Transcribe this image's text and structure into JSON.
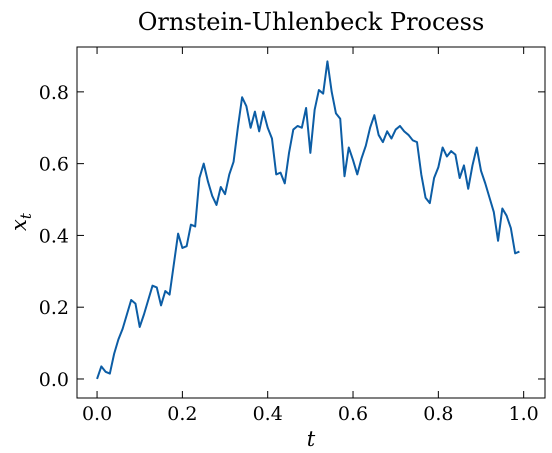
{
  "chart_data": {
    "type": "line",
    "title": "Ornstein-Uhlenbeck Process",
    "xlabel": "t",
    "ylabel": {
      "base": "x",
      "sub": "t"
    },
    "x": [
      0,
      0.01,
      0.02,
      0.03,
      0.04,
      0.05,
      0.06,
      0.07,
      0.08,
      0.09,
      0.1,
      0.11,
      0.12,
      0.13,
      0.14,
      0.15,
      0.16,
      0.17,
      0.18,
      0.19,
      0.2,
      0.21,
      0.22,
      0.23,
      0.24,
      0.25,
      0.26,
      0.27,
      0.28,
      0.29,
      0.3,
      0.31,
      0.32,
      0.33,
      0.34,
      0.35,
      0.36,
      0.37,
      0.38,
      0.39,
      0.4,
      0.41,
      0.42,
      0.43,
      0.44,
      0.45,
      0.46,
      0.47,
      0.48,
      0.49,
      0.5,
      0.51,
      0.52,
      0.53,
      0.54,
      0.55,
      0.56,
      0.57,
      0.58,
      0.59,
      0.6,
      0.61,
      0.62,
      0.63,
      0.64,
      0.65,
      0.66,
      0.67,
      0.68,
      0.69,
      0.7,
      0.71,
      0.72,
      0.73,
      0.74,
      0.75,
      0.76,
      0.77,
      0.78,
      0.79,
      0.8,
      0.81,
      0.82,
      0.83,
      0.84,
      0.85,
      0.86,
      0.87,
      0.88,
      0.89,
      0.9,
      0.91,
      0.92,
      0.93,
      0.94,
      0.95,
      0.96,
      0.97,
      0.98,
      0.99
    ],
    "series": [
      {
        "color": "#0C5DA5",
        "values": [
          0,
          0.035,
          0.02,
          0.015,
          0.07,
          0.11,
          0.14,
          0.18,
          0.22,
          0.21,
          0.145,
          0.18,
          0.22,
          0.26,
          0.255,
          0.205,
          0.245,
          0.235,
          0.32,
          0.405,
          0.365,
          0.37,
          0.43,
          0.425,
          0.56,
          0.6,
          0.55,
          0.51,
          0.485,
          0.535,
          0.515,
          0.57,
          0.605,
          0.7,
          0.785,
          0.76,
          0.7,
          0.745,
          0.69,
          0.745,
          0.7,
          0.67,
          0.57,
          0.575,
          0.545,
          0.63,
          0.695,
          0.705,
          0.7,
          0.755,
          0.63,
          0.75,
          0.805,
          0.795,
          0.885,
          0.8,
          0.74,
          0.725,
          0.565,
          0.645,
          0.61,
          0.57,
          0.615,
          0.65,
          0.7,
          0.735,
          0.68,
          0.66,
          0.69,
          0.67,
          0.695,
          0.705,
          0.69,
          0.68,
          0.665,
          0.66,
          0.57,
          0.505,
          0.49,
          0.56,
          0.59,
          0.645,
          0.62,
          0.635,
          0.625,
          0.56,
          0.595,
          0.53,
          0.595,
          0.645,
          0.58,
          0.545,
          0.505,
          0.465,
          0.385,
          0.475,
          0.455,
          0.42,
          0.35,
          0.355
        ]
      }
    ],
    "xlim": [
      -0.047,
      1.05
    ],
    "ylim": [
      -0.053,
      0.925
    ],
    "xticks": [
      {
        "value": 0,
        "label": "0.0"
      },
      0.2,
      0.4,
      0.6,
      0.8,
      {
        "value": 1,
        "label": "1.0"
      }
    ],
    "yticks": [
      {
        "value": 0,
        "label": "0.0"
      },
      0.2,
      0.4,
      0.6,
      0.8
    ]
  }
}
